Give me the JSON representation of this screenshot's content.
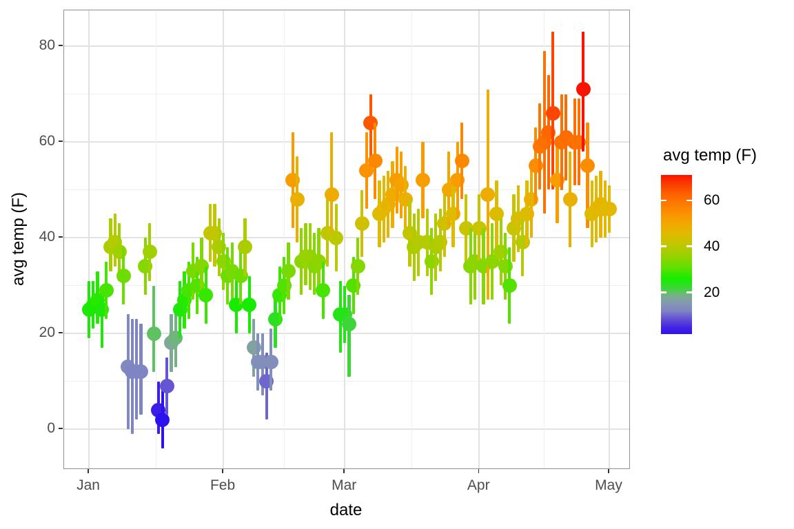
{
  "figure": {
    "background": "#ffffff",
    "panel_border": "#8f8f8f",
    "grid_major_color": "#e2e2e2",
    "grid_minor_color": "#f0f0f0",
    "tick_label_color": "#4d4d4d",
    "title_color": "#000000"
  },
  "axes": {
    "x": {
      "title": "date",
      "tick_labels": [
        "Jan",
        "Feb",
        "Mar",
        "Apr",
        "May"
      ]
    },
    "y": {
      "title": "avg temp (F)",
      "tick_labels": [
        "0",
        "20",
        "40",
        "60",
        "80"
      ]
    }
  },
  "legend": {
    "title": "avg temp (F)",
    "tick_labels": [
      "60",
      "40",
      "20"
    ]
  },
  "chart_data": {
    "type": "scatter",
    "geom": "pointrange",
    "title": "",
    "xlabel": "date",
    "ylabel": "avg temp (F)",
    "x_tick_labels": [
      "Jan",
      "Feb",
      "Mar",
      "Apr",
      "May"
    ],
    "x_tick_days": [
      1,
      32,
      60,
      91,
      121
    ],
    "x_minor_days": [
      16.5,
      46,
      75.5,
      106
    ],
    "x_axis_day_range": [
      -4.7,
      125.8
    ],
    "start_date": "Jan 1",
    "end_date": "May 1",
    "y_ticks": [
      0,
      20,
      40,
      60,
      80
    ],
    "y_minor": [
      10,
      30,
      50,
      70
    ],
    "ylim": [
      -8.3,
      87.5
    ],
    "grid": true,
    "legend_position": "right",
    "color_scale": {
      "title": "avg temp (F)",
      "domain": [
        2,
        71
      ],
      "legend_ticks": [
        60,
        40,
        20
      ],
      "stops": [
        [
          2,
          "#2c12ee"
        ],
        [
          5,
          "#4326e2"
        ],
        [
          9,
          "#6655d2"
        ],
        [
          12,
          "#7f84c2"
        ],
        [
          15,
          "#8495b6"
        ],
        [
          18,
          "#7fa897"
        ],
        [
          20,
          "#5fc262"
        ],
        [
          23,
          "#2ede24"
        ],
        [
          26,
          "#17ec00"
        ],
        [
          30,
          "#55e100"
        ],
        [
          34,
          "#84d700"
        ],
        [
          38,
          "#abcd00"
        ],
        [
          42,
          "#c9c400"
        ],
        [
          46,
          "#e2b800"
        ],
        [
          50,
          "#f2a700"
        ],
        [
          54,
          "#fb9200"
        ],
        [
          58,
          "#fd7d00"
        ],
        [
          63,
          "#fd6000"
        ],
        [
          67,
          "#fb3c00"
        ],
        [
          71,
          "#f81400"
        ]
      ]
    },
    "month_lengths": [
      31,
      28,
      31,
      30,
      1
    ],
    "mid": [
      25,
      26,
      27,
      25,
      29,
      38,
      39,
      37,
      32,
      13,
      12,
      12,
      12,
      34,
      37,
      20,
      4,
      2,
      9,
      18,
      19,
      25,
      27,
      29,
      33,
      30,
      34,
      28,
      41,
      41,
      38,
      35,
      32,
      33,
      26,
      32,
      38,
      26,
      17,
      14,
      14,
      10,
      14,
      23,
      28,
      30,
      33,
      52,
      48,
      35,
      36,
      36,
      34,
      35,
      29,
      41,
      49,
      40,
      24,
      24,
      22,
      30,
      34,
      43,
      54,
      64,
      56,
      45,
      46,
      47,
      49,
      52,
      51,
      48,
      41,
      38,
      39,
      52,
      39,
      35,
      38,
      39,
      43,
      50,
      45,
      52,
      56,
      42,
      34,
      35,
      42,
      34,
      49,
      35,
      45,
      37,
      34,
      30,
      42,
      44,
      39,
      45,
      48,
      55,
      59,
      60,
      62,
      66,
      52,
      60,
      61,
      48,
      60,
      60,
      71,
      55,
      45,
      46,
      47,
      46,
      46
    ],
    "low": [
      19,
      21,
      22,
      17,
      23,
      33,
      34,
      31,
      26,
      0,
      -1,
      2,
      3,
      28,
      31,
      12,
      -1,
      -4,
      3,
      12,
      13,
      19,
      21,
      23,
      27,
      24,
      28,
      22,
      35,
      34,
      32,
      29,
      26,
      27,
      20,
      26,
      32,
      20,
      11,
      8,
      7,
      2,
      8,
      17,
      22,
      24,
      27,
      42,
      39,
      28,
      30,
      29,
      28,
      29,
      23,
      34,
      40,
      33,
      16,
      18,
      11,
      24,
      28,
      36,
      46,
      56,
      48,
      38,
      39,
      40,
      42,
      45,
      44,
      41,
      34,
      31,
      32,
      44,
      32,
      28,
      31,
      33,
      36,
      42,
      38,
      44,
      48,
      35,
      26,
      27,
      35,
      26,
      27,
      27,
      38,
      30,
      27,
      22,
      35,
      37,
      32,
      38,
      40,
      47,
      50,
      45,
      50,
      50,
      43,
      50,
      52,
      38,
      51,
      51,
      58,
      42,
      38,
      39,
      40,
      40,
      41
    ],
    "high": [
      31,
      31,
      33,
      30,
      35,
      44,
      45,
      43,
      38,
      24,
      23,
      23,
      22,
      40,
      43,
      30,
      10,
      8,
      15,
      24,
      25,
      31,
      33,
      35,
      39,
      36,
      40,
      34,
      47,
      47,
      44,
      41,
      38,
      39,
      32,
      38,
      44,
      32,
      23,
      20,
      20,
      16,
      21,
      29,
      34,
      36,
      39,
      62,
      57,
      42,
      43,
      43,
      41,
      42,
      35,
      48,
      62,
      47,
      31,
      30,
      28,
      36,
      40,
      50,
      62,
      70,
      64,
      52,
      53,
      54,
      56,
      59,
      58,
      55,
      48,
      45,
      46,
      60,
      46,
      42,
      45,
      46,
      50,
      58,
      52,
      60,
      64,
      49,
      42,
      43,
      49,
      42,
      71,
      43,
      52,
      44,
      41,
      38,
      49,
      51,
      46,
      52,
      56,
      63,
      68,
      79,
      74,
      83,
      61,
      70,
      70,
      58,
      69,
      69,
      83,
      64,
      52,
      53,
      54,
      52,
      51
    ]
  }
}
